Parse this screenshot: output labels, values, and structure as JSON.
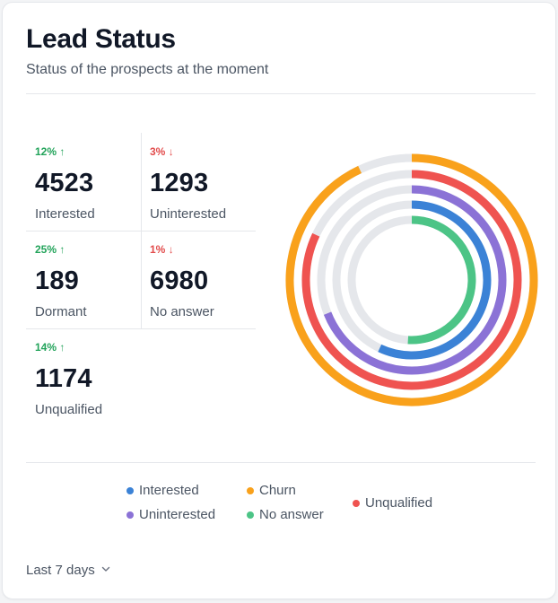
{
  "card": {
    "title": "Lead Status",
    "subtitle": "Status of the prospects at the moment"
  },
  "stats": [
    {
      "change": "12%",
      "direction": "up",
      "value": "4523",
      "label": "Interested"
    },
    {
      "change": "3%",
      "direction": "down",
      "value": "1293",
      "label": "Uninterested"
    },
    {
      "change": "25%",
      "direction": "up",
      "value": "189",
      "label": "Dormant"
    },
    {
      "change": "1%",
      "direction": "down",
      "value": "6980",
      "label": "No answer"
    },
    {
      "change": "14%",
      "direction": "up",
      "value": "1174",
      "label": "Unqualified"
    }
  ],
  "arrows": {
    "up": "↑",
    "down": "↓"
  },
  "colors": {
    "up": "#22a35a",
    "down": "#e24c4c",
    "track": "#e5e7eb"
  },
  "chart_data": {
    "type": "radial-bar",
    "max": 100,
    "series": [
      {
        "name": "Churn",
        "value": 93,
        "color": "#f9a11b"
      },
      {
        "name": "Unqualified",
        "value": 82,
        "color": "#ef5350"
      },
      {
        "name": "Uninterested",
        "value": 69,
        "color": "#8b72d6"
      },
      {
        "name": "Interested",
        "value": 57,
        "color": "#3b82d6"
      },
      {
        "name": "No answer",
        "value": 51,
        "color": "#4cc486"
      }
    ]
  },
  "legend": [
    {
      "label": "Interested",
      "color": "#3b82d6"
    },
    {
      "label": "Uninterested",
      "color": "#8b72d6"
    },
    {
      "label": "Churn",
      "color": "#f9a11b"
    },
    {
      "label": "No answer",
      "color": "#4cc486"
    },
    {
      "label": "Unqualified",
      "color": "#ef5350"
    }
  ],
  "period": {
    "label": "Last 7 days",
    "icon": "chevron-down-icon"
  }
}
